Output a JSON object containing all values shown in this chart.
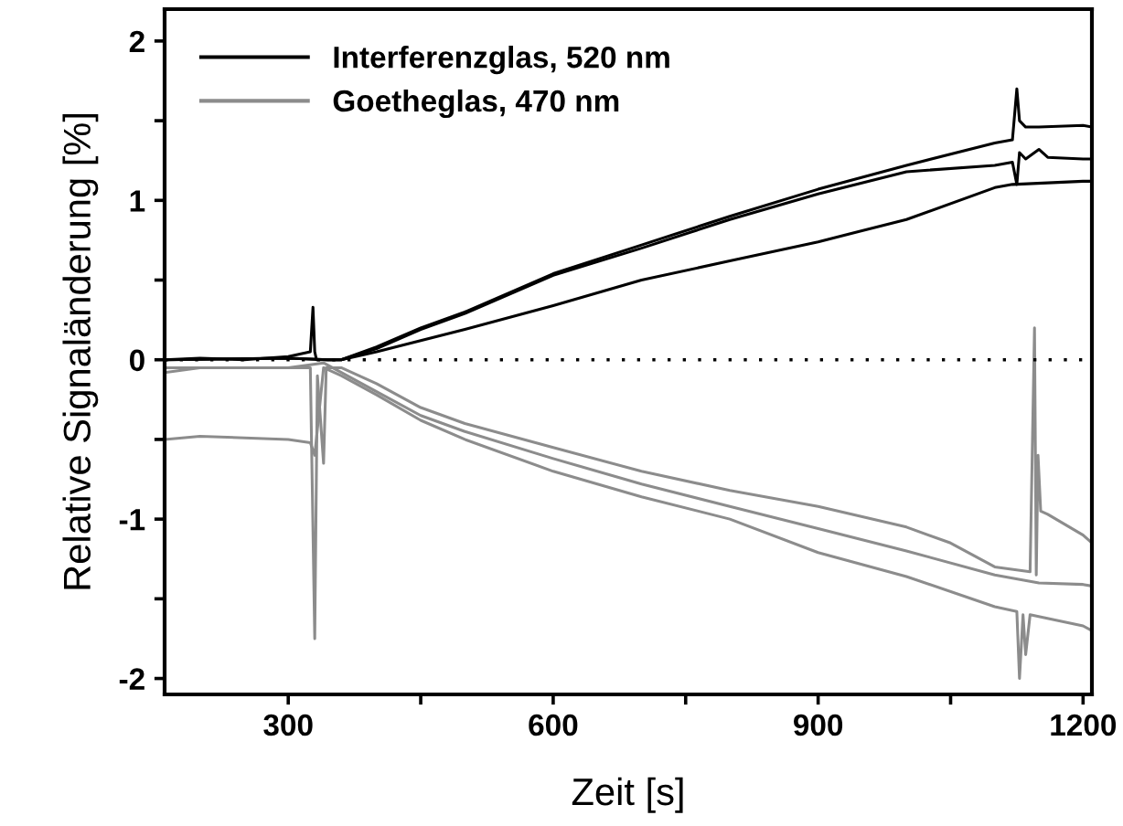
{
  "chart_data": {
    "type": "line",
    "xlabel": "Zeit [s]",
    "ylabel": "Relative Signaländerung [%]",
    "xlim": [
      160,
      1210
    ],
    "ylim": [
      -2.1,
      2.2
    ],
    "xticks": [
      300,
      {
        "value": 450,
        "label": null
      },
      600,
      {
        "value": 750,
        "label": null
      },
      900,
      {
        "value": 1050,
        "label": null
      },
      1200
    ],
    "yticks": [
      -2,
      {
        "value": -1.5,
        "label": null
      },
      -1,
      {
        "value": -0.5,
        "label": null
      },
      0,
      {
        "value": 0.5,
        "label": null
      },
      1,
      {
        "value": 1.5,
        "label": null
      },
      2
    ],
    "grid": false,
    "legend": "top left",
    "line_style": "solid",
    "marker": "none",
    "ref_lines": [
      {
        "axis": "y",
        "value": 0,
        "color": "#000000",
        "line_style": "dotted"
      }
    ],
    "series": [
      {
        "name": "Interferenzglas, 520 nm",
        "color": "#000000",
        "x": [
          160,
          200,
          250,
          300,
          325,
          328,
          330,
          332,
          335,
          345,
          360,
          400,
          450,
          500,
          600,
          700,
          800,
          900,
          1000,
          1100,
          1120,
          1125,
          1128,
          1135,
          1150,
          1200,
          1210
        ],
        "values": [
          0,
          0.01,
          0,
          0.02,
          0.05,
          0.33,
          0.05,
          0,
          0,
          0,
          0,
          0.08,
          0.2,
          0.3,
          0.54,
          0.72,
          0.9,
          1.07,
          1.22,
          1.36,
          1.38,
          1.7,
          1.5,
          1.46,
          1.46,
          1.47,
          1.46
        ]
      },
      {
        "color": "#000000",
        "x": [
          160,
          300,
          345,
          360,
          400,
          450,
          500,
          600,
          700,
          800,
          900,
          1000,
          1100,
          1120,
          1125,
          1128,
          1135,
          1150,
          1160,
          1200,
          1210
        ],
        "values": [
          0,
          0.01,
          0,
          0,
          0.07,
          0.19,
          0.29,
          0.53,
          0.7,
          0.88,
          1.04,
          1.18,
          1.22,
          1.24,
          1.1,
          1.3,
          1.26,
          1.32,
          1.27,
          1.26,
          1.26
        ]
      },
      {
        "color": "#000000",
        "x": [
          160,
          300,
          345,
          360,
          400,
          450,
          500,
          600,
          700,
          800,
          900,
          1000,
          1100,
          1120,
          1200,
          1210
        ],
        "values": [
          0,
          0.01,
          0,
          0,
          0.05,
          0.12,
          0.19,
          0.34,
          0.5,
          0.62,
          0.74,
          0.88,
          1.08,
          1.1,
          1.12,
          1.12
        ]
      },
      {
        "name": "Goetheglas, 470 nm",
        "color": "#8c8c8c",
        "x": [
          160,
          200,
          300,
          325,
          330,
          333,
          340,
          343,
          360,
          400,
          450,
          500,
          600,
          700,
          800,
          900,
          1000,
          1050,
          1100,
          1140,
          1145,
          1147,
          1149,
          1152,
          1160,
          1200,
          1210
        ],
        "values": [
          -0.08,
          -0.05,
          -0.05,
          -0.05,
          -1.75,
          -0.1,
          -0.65,
          -0.05,
          -0.05,
          -0.15,
          -0.3,
          -0.4,
          -0.55,
          -0.7,
          -0.82,
          -0.92,
          -1.05,
          -1.15,
          -1.3,
          -1.33,
          0.2,
          -1.35,
          -0.6,
          -0.95,
          -0.97,
          -1.1,
          -1.15
        ]
      },
      {
        "color": "#8c8c8c",
        "x": [
          160,
          300,
          340,
          360,
          400,
          450,
          500,
          600,
          700,
          800,
          900,
          1000,
          1100,
          1150,
          1200,
          1210
        ],
        "values": [
          -0.05,
          -0.05,
          -0.02,
          -0.08,
          -0.2,
          -0.35,
          -0.45,
          -0.62,
          -0.78,
          -0.92,
          -1.06,
          -1.2,
          -1.35,
          -1.4,
          -1.41,
          -1.42
        ]
      },
      {
        "color": "#8c8c8c",
        "x": [
          160,
          200,
          300,
          325,
          330,
          340,
          360,
          400,
          450,
          500,
          600,
          700,
          800,
          900,
          1000,
          1100,
          1125,
          1128,
          1132,
          1135,
          1140,
          1200,
          1210
        ],
        "values": [
          -0.5,
          -0.48,
          -0.5,
          -0.52,
          -0.6,
          -0.05,
          -0.1,
          -0.22,
          -0.38,
          -0.5,
          -0.7,
          -0.86,
          -1.0,
          -1.21,
          -1.36,
          -1.55,
          -1.58,
          -2.0,
          -1.6,
          -1.85,
          -1.6,
          -1.67,
          -1.7
        ]
      }
    ]
  }
}
